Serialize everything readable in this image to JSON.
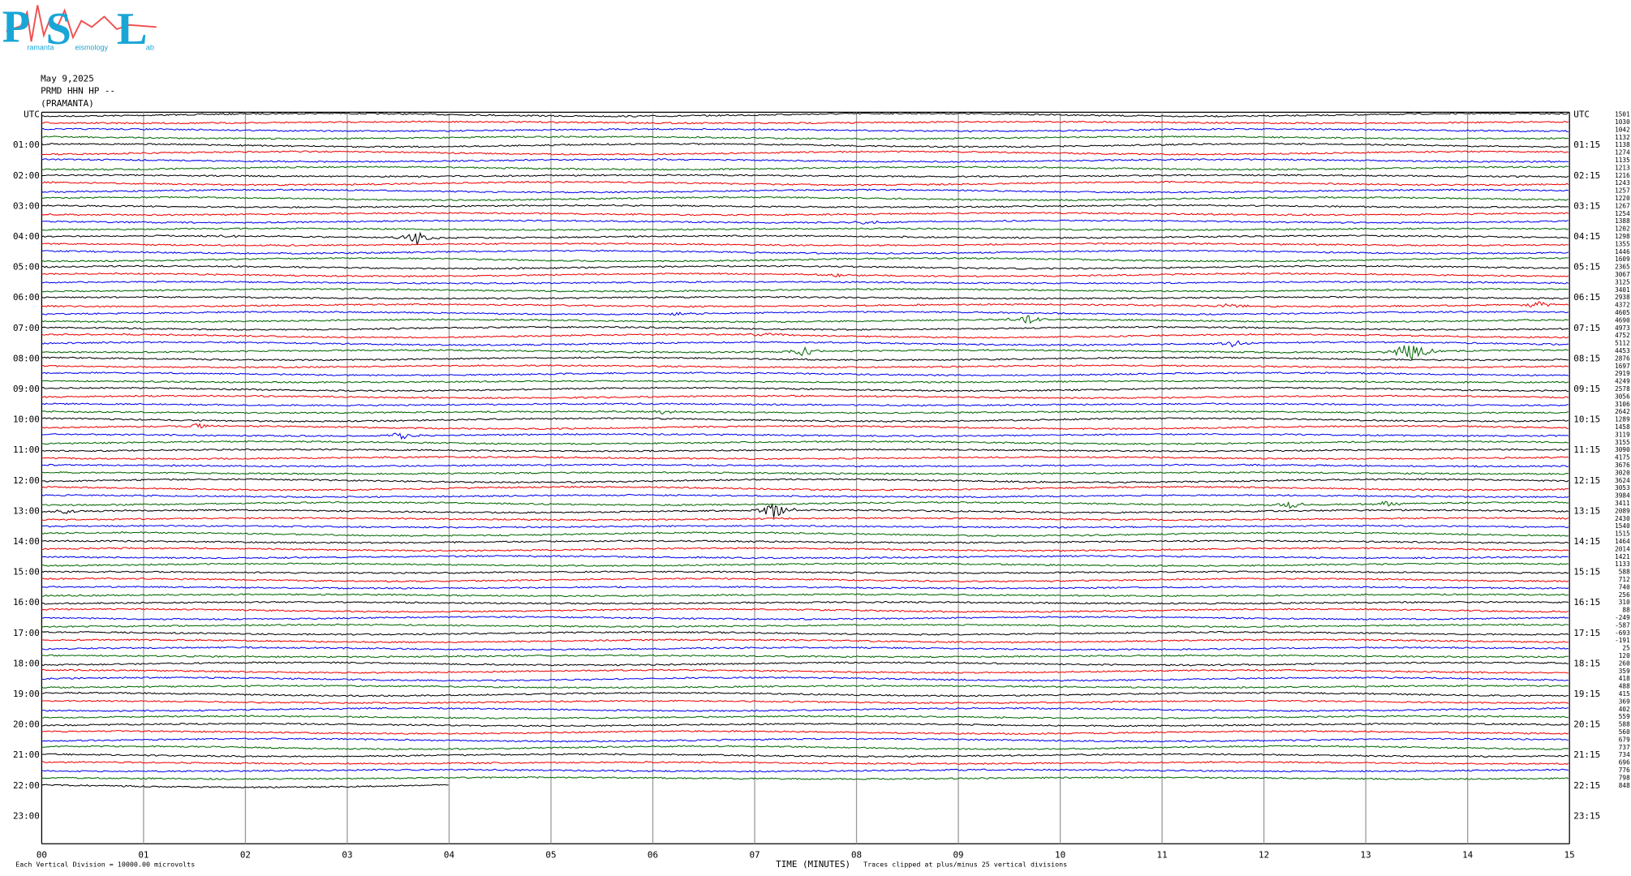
{
  "logo": {
    "big": [
      "P",
      "S",
      "L"
    ],
    "small": [
      "ramanta",
      "eismology",
      "ab"
    ]
  },
  "header": {
    "date": "May 9,2025",
    "station": "PRMD HHN HP --",
    "site": "(PRAMANTA)"
  },
  "left_labels": [
    "UTC",
    "01:00",
    "02:00",
    "03:00",
    "04:00",
    "05:00",
    "06:00",
    "07:00",
    "08:00",
    "09:00",
    "10:00",
    "11:00",
    "12:00",
    "13:00",
    "14:00",
    "15:00",
    "16:00",
    "17:00",
    "18:00",
    "19:00",
    "20:00",
    "21:00",
    "22:00",
    "23:00"
  ],
  "right_labels": [
    "UTC",
    "01:15",
    "02:15",
    "03:15",
    "04:15",
    "05:15",
    "06:15",
    "07:15",
    "08:15",
    "09:15",
    "10:15",
    "11:15",
    "12:15",
    "13:15",
    "14:15",
    "15:15",
    "16:15",
    "17:15",
    "18:15",
    "19:15",
    "20:15",
    "21:15",
    "22:15",
    "23:15"
  ],
  "trace_offsets": [
    1501,
    1030,
    1042,
    1132,
    1138,
    1274,
    1135,
    1213,
    1216,
    1243,
    1257,
    1220,
    1267,
    1254,
    1388,
    1202,
    1298,
    1355,
    1446,
    1609,
    2365,
    3067,
    3125,
    3401,
    2938,
    4372,
    4605,
    4690,
    4973,
    4752,
    5112,
    4453,
    2876,
    1697,
    2919,
    4249,
    2578,
    3056,
    3106,
    2642,
    1289,
    1458,
    3119,
    3155,
    3090,
    4175,
    3676,
    3020,
    3624,
    3053,
    3984,
    3411,
    2089,
    2430,
    1540,
    1515,
    1464,
    2014,
    1421,
    1133,
    588,
    712,
    740,
    256,
    310,
    88,
    -249,
    -587,
    -693,
    -191,
    25,
    120,
    260,
    359,
    418,
    488,
    415,
    369,
    402,
    559,
    588,
    560,
    679,
    737,
    734,
    696,
    776,
    798,
    848
  ],
  "x_labels": [
    "00",
    "01",
    "02",
    "03",
    "04",
    "05",
    "06",
    "07",
    "08",
    "09",
    "10",
    "11",
    "12",
    "13",
    "14",
    "15"
  ],
  "x_title": "TIME (MINUTES)",
  "clip_note": "Traces clipped at plus/minus 25 vertical divisions",
  "scale_note": "Each Vertical Division = 10000.00 microvolts"
}
